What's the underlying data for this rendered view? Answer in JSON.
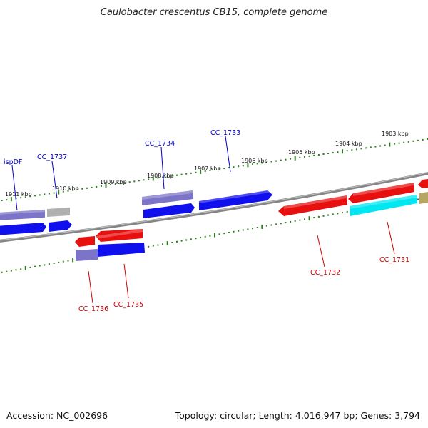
{
  "title": "Caulobacter crescentus CB15, complete genome",
  "footer": {
    "accession": "Accession: NC_002696",
    "summary": "Topology: circular; Length: 4,016,947 bp; Genes: 3,794"
  },
  "colors": {
    "backbone": "#808080",
    "forward_label": "#0000cc",
    "reverse_label": "#cc0000",
    "tick": "#2e7d1e",
    "blue": "#1010ee",
    "purple": "#7c74c8",
    "red": "#e80f0f",
    "cyan": "#00e7f2",
    "gray": "#b0b0b0",
    "olive": "#b7a564"
  },
  "kbp_ticks": [
    "1903 kbp",
    "1904 kbp",
    "1905 kbp",
    "1906 kbp",
    "1907 kbp",
    "1908 kbp",
    "1909 kbp",
    "1910 kbp",
    "1911 kbp"
  ],
  "gene_labels_forward": [
    "ispDF",
    "CC_1737",
    "CC_1734",
    "CC_1733"
  ],
  "gene_labels_reverse": [
    "CC_1736",
    "CC_1735",
    "CC_1732",
    "CC_1731"
  ]
}
